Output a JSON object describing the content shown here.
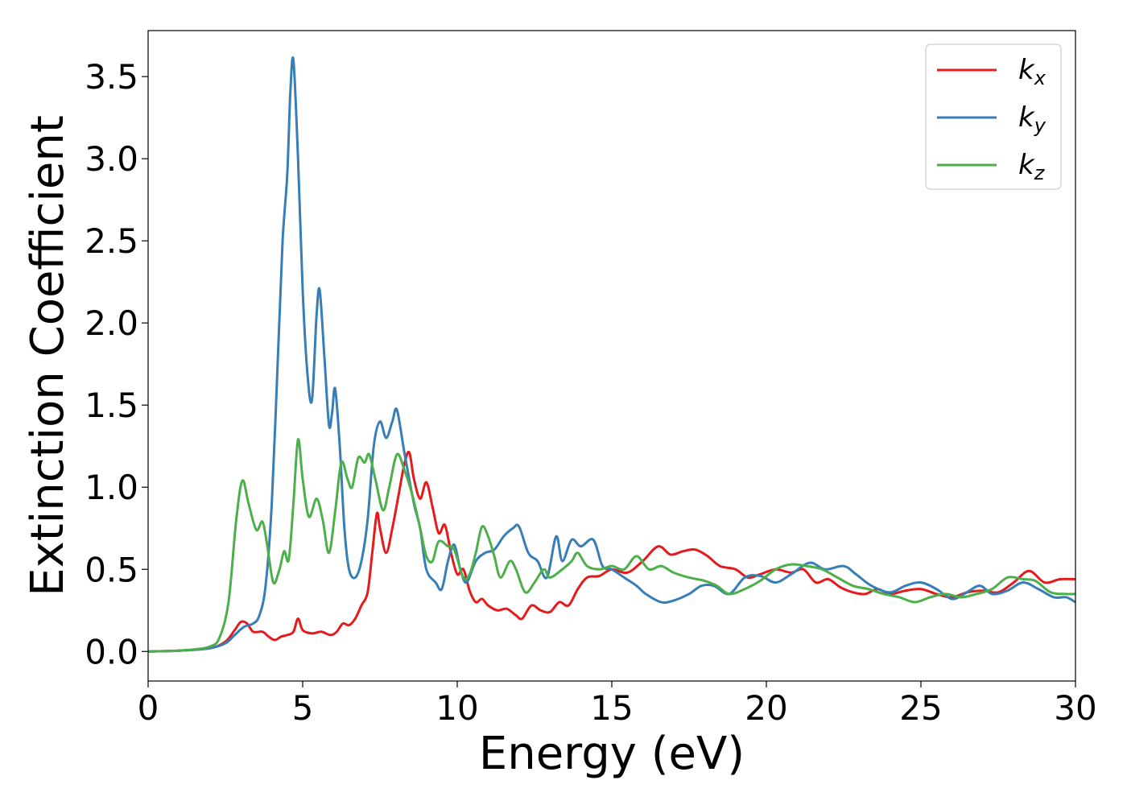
{
  "chart_data": {
    "type": "line",
    "xlabel": "Energy (eV)",
    "ylabel": "Extinction Coefficient",
    "xlim": [
      0,
      30
    ],
    "ylim": [
      -0.18,
      3.78
    ],
    "xticks": [
      0,
      5,
      10,
      15,
      20,
      25,
      30
    ],
    "xtick_labels": [
      "0",
      "5",
      "10",
      "15",
      "20",
      "25",
      "30"
    ],
    "yticks": [
      0.0,
      0.5,
      1.0,
      1.5,
      2.0,
      2.5,
      3.0,
      3.5
    ],
    "ytick_labels": [
      "0.0",
      "0.5",
      "1.0",
      "1.5",
      "2.0",
      "2.5",
      "3.0",
      "3.5"
    ],
    "grid": false,
    "legend_position": "top-right",
    "series": [
      {
        "name": "k_x",
        "legend_base": "k",
        "legend_sub": "x",
        "color": "#e41a1c",
        "points": [
          [
            0,
            0
          ],
          [
            1,
            0.005
          ],
          [
            2,
            0.02
          ],
          [
            2.5,
            0.06
          ],
          [
            2.8,
            0.13
          ],
          [
            3.0,
            0.18
          ],
          [
            3.2,
            0.17
          ],
          [
            3.4,
            0.12
          ],
          [
            3.7,
            0.12
          ],
          [
            3.9,
            0.09
          ],
          [
            4.1,
            0.07
          ],
          [
            4.3,
            0.09
          ],
          [
            4.5,
            0.1
          ],
          [
            4.7,
            0.12
          ],
          [
            4.85,
            0.2
          ],
          [
            5.0,
            0.13
          ],
          [
            5.3,
            0.11
          ],
          [
            5.6,
            0.12
          ],
          [
            5.9,
            0.1
          ],
          [
            6.1,
            0.12
          ],
          [
            6.3,
            0.17
          ],
          [
            6.5,
            0.16
          ],
          [
            6.7,
            0.2
          ],
          [
            6.9,
            0.28
          ],
          [
            7.1,
            0.36
          ],
          [
            7.25,
            0.6
          ],
          [
            7.4,
            0.84
          ],
          [
            7.5,
            0.75
          ],
          [
            7.7,
            0.6
          ],
          [
            7.9,
            0.75
          ],
          [
            8.1,
            0.95
          ],
          [
            8.3,
            1.15
          ],
          [
            8.45,
            1.21
          ],
          [
            8.6,
            1.05
          ],
          [
            8.8,
            0.93
          ],
          [
            9.0,
            1.03
          ],
          [
            9.2,
            0.88
          ],
          [
            9.4,
            0.72
          ],
          [
            9.6,
            0.77
          ],
          [
            9.8,
            0.6
          ],
          [
            10.0,
            0.47
          ],
          [
            10.2,
            0.5
          ],
          [
            10.4,
            0.37
          ],
          [
            10.6,
            0.3
          ],
          [
            10.8,
            0.32
          ],
          [
            11.0,
            0.28
          ],
          [
            11.3,
            0.25
          ],
          [
            11.6,
            0.26
          ],
          [
            11.9,
            0.22
          ],
          [
            12.1,
            0.2
          ],
          [
            12.4,
            0.28
          ],
          [
            12.7,
            0.25
          ],
          [
            13.0,
            0.24
          ],
          [
            13.3,
            0.3
          ],
          [
            13.6,
            0.28
          ],
          [
            13.9,
            0.38
          ],
          [
            14.2,
            0.45
          ],
          [
            14.6,
            0.46
          ],
          [
            15.0,
            0.5
          ],
          [
            15.5,
            0.48
          ],
          [
            16.0,
            0.55
          ],
          [
            16.5,
            0.64
          ],
          [
            16.9,
            0.59
          ],
          [
            17.3,
            0.61
          ],
          [
            17.7,
            0.62
          ],
          [
            18.1,
            0.58
          ],
          [
            18.5,
            0.52
          ],
          [
            19.0,
            0.5
          ],
          [
            19.4,
            0.45
          ],
          [
            19.8,
            0.47
          ],
          [
            20.3,
            0.5
          ],
          [
            20.8,
            0.48
          ],
          [
            21.2,
            0.5
          ],
          [
            21.6,
            0.42
          ],
          [
            22.0,
            0.44
          ],
          [
            22.4,
            0.39
          ],
          [
            22.8,
            0.36
          ],
          [
            23.2,
            0.35
          ],
          [
            23.6,
            0.38
          ],
          [
            24.0,
            0.35
          ],
          [
            24.5,
            0.37
          ],
          [
            25.0,
            0.38
          ],
          [
            25.5,
            0.35
          ],
          [
            26.0,
            0.33
          ],
          [
            26.5,
            0.36
          ],
          [
            27.0,
            0.37
          ],
          [
            27.5,
            0.36
          ],
          [
            28.0,
            0.42
          ],
          [
            28.5,
            0.49
          ],
          [
            29.0,
            0.42
          ],
          [
            29.5,
            0.44
          ],
          [
            30.0,
            0.44
          ]
        ]
      },
      {
        "name": "k_y",
        "legend_base": "k",
        "legend_sub": "y",
        "color": "#377eb8",
        "points": [
          [
            0,
            0
          ],
          [
            1,
            0.005
          ],
          [
            2,
            0.02
          ],
          [
            2.5,
            0.05
          ],
          [
            2.8,
            0.1
          ],
          [
            3.1,
            0.15
          ],
          [
            3.4,
            0.17
          ],
          [
            3.6,
            0.22
          ],
          [
            3.8,
            0.4
          ],
          [
            4.0,
            0.9
          ],
          [
            4.2,
            1.8
          ],
          [
            4.35,
            2.5
          ],
          [
            4.5,
            2.9
          ],
          [
            4.6,
            3.4
          ],
          [
            4.7,
            3.6
          ],
          [
            4.85,
            3.0
          ],
          [
            5.0,
            2.2
          ],
          [
            5.15,
            1.7
          ],
          [
            5.3,
            1.53
          ],
          [
            5.45,
            2.05
          ],
          [
            5.55,
            2.2
          ],
          [
            5.7,
            1.8
          ],
          [
            5.85,
            1.38
          ],
          [
            5.95,
            1.45
          ],
          [
            6.05,
            1.6
          ],
          [
            6.2,
            1.25
          ],
          [
            6.35,
            0.75
          ],
          [
            6.5,
            0.5
          ],
          [
            6.7,
            0.45
          ],
          [
            6.9,
            0.55
          ],
          [
            7.1,
            0.8
          ],
          [
            7.3,
            1.25
          ],
          [
            7.5,
            1.4
          ],
          [
            7.7,
            1.3
          ],
          [
            7.9,
            1.4
          ],
          [
            8.05,
            1.47
          ],
          [
            8.3,
            1.2
          ],
          [
            8.6,
            0.9
          ],
          [
            8.8,
            0.75
          ],
          [
            9.0,
            0.5
          ],
          [
            9.3,
            0.42
          ],
          [
            9.5,
            0.38
          ],
          [
            9.7,
            0.55
          ],
          [
            9.9,
            0.65
          ],
          [
            10.1,
            0.5
          ],
          [
            10.3,
            0.42
          ],
          [
            10.6,
            0.55
          ],
          [
            10.9,
            0.6
          ],
          [
            11.2,
            0.62
          ],
          [
            11.5,
            0.7
          ],
          [
            11.8,
            0.75
          ],
          [
            12.0,
            0.76
          ],
          [
            12.3,
            0.6
          ],
          [
            12.6,
            0.55
          ],
          [
            12.9,
            0.45
          ],
          [
            13.2,
            0.7
          ],
          [
            13.4,
            0.55
          ],
          [
            13.7,
            0.68
          ],
          [
            14.0,
            0.64
          ],
          [
            14.4,
            0.68
          ],
          [
            14.7,
            0.52
          ],
          [
            15.0,
            0.5
          ],
          [
            15.4,
            0.45
          ],
          [
            15.8,
            0.4
          ],
          [
            16.1,
            0.35
          ],
          [
            16.6,
            0.3
          ],
          [
            17.0,
            0.31
          ],
          [
            17.5,
            0.35
          ],
          [
            17.9,
            0.4
          ],
          [
            18.3,
            0.4
          ],
          [
            18.8,
            0.35
          ],
          [
            19.3,
            0.45
          ],
          [
            19.8,
            0.46
          ],
          [
            20.3,
            0.42
          ],
          [
            20.8,
            0.47
          ],
          [
            21.4,
            0.54
          ],
          [
            21.9,
            0.5
          ],
          [
            22.5,
            0.52
          ],
          [
            22.9,
            0.47
          ],
          [
            23.4,
            0.4
          ],
          [
            24.0,
            0.36
          ],
          [
            24.5,
            0.4
          ],
          [
            25.0,
            0.42
          ],
          [
            25.5,
            0.38
          ],
          [
            26.0,
            0.32
          ],
          [
            26.4,
            0.35
          ],
          [
            26.9,
            0.4
          ],
          [
            27.3,
            0.35
          ],
          [
            27.8,
            0.37
          ],
          [
            28.3,
            0.42
          ],
          [
            28.8,
            0.38
          ],
          [
            29.3,
            0.33
          ],
          [
            29.7,
            0.33
          ],
          [
            30.0,
            0.3
          ]
        ]
      },
      {
        "name": "k_z",
        "legend_base": "k",
        "legend_sub": "z",
        "color": "#4daf4a",
        "points": [
          [
            0,
            0
          ],
          [
            1,
            0.005
          ],
          [
            1.6,
            0.015
          ],
          [
            2.0,
            0.03
          ],
          [
            2.3,
            0.08
          ],
          [
            2.6,
            0.3
          ],
          [
            2.85,
            0.8
          ],
          [
            3.05,
            1.04
          ],
          [
            3.25,
            0.9
          ],
          [
            3.5,
            0.74
          ],
          [
            3.7,
            0.79
          ],
          [
            3.85,
            0.65
          ],
          [
            4.05,
            0.42
          ],
          [
            4.25,
            0.5
          ],
          [
            4.4,
            0.61
          ],
          [
            4.55,
            0.56
          ],
          [
            4.7,
            0.9
          ],
          [
            4.85,
            1.29
          ],
          [
            5.0,
            1.05
          ],
          [
            5.2,
            0.82
          ],
          [
            5.45,
            0.93
          ],
          [
            5.65,
            0.8
          ],
          [
            5.85,
            0.6
          ],
          [
            6.05,
            0.85
          ],
          [
            6.25,
            1.15
          ],
          [
            6.45,
            1.05
          ],
          [
            6.6,
            1.0
          ],
          [
            6.8,
            1.18
          ],
          [
            7.0,
            1.15
          ],
          [
            7.15,
            1.2
          ],
          [
            7.35,
            1.05
          ],
          [
            7.6,
            0.86
          ],
          [
            7.8,
            1.0
          ],
          [
            8.05,
            1.2
          ],
          [
            8.3,
            1.1
          ],
          [
            8.55,
            0.95
          ],
          [
            8.8,
            0.75
          ],
          [
            9.0,
            0.58
          ],
          [
            9.2,
            0.55
          ],
          [
            9.4,
            0.67
          ],
          [
            9.7,
            0.64
          ],
          [
            9.9,
            0.62
          ],
          [
            10.2,
            0.45
          ],
          [
            10.4,
            0.47
          ],
          [
            10.6,
            0.6
          ],
          [
            10.8,
            0.76
          ],
          [
            11.0,
            0.7
          ],
          [
            11.2,
            0.58
          ],
          [
            11.4,
            0.45
          ],
          [
            11.7,
            0.55
          ],
          [
            11.9,
            0.5
          ],
          [
            12.2,
            0.36
          ],
          [
            12.5,
            0.42
          ],
          [
            12.8,
            0.5
          ],
          [
            13.0,
            0.45
          ],
          [
            13.4,
            0.5
          ],
          [
            13.7,
            0.55
          ],
          [
            13.9,
            0.6
          ],
          [
            14.2,
            0.52
          ],
          [
            14.6,
            0.5
          ],
          [
            15.0,
            0.52
          ],
          [
            15.4,
            0.5
          ],
          [
            15.8,
            0.58
          ],
          [
            16.2,
            0.5
          ],
          [
            16.6,
            0.52
          ],
          [
            17.0,
            0.48
          ],
          [
            17.5,
            0.45
          ],
          [
            18.0,
            0.43
          ],
          [
            18.4,
            0.4
          ],
          [
            18.8,
            0.35
          ],
          [
            19.3,
            0.38
          ],
          [
            19.8,
            0.43
          ],
          [
            20.3,
            0.5
          ],
          [
            20.8,
            0.53
          ],
          [
            21.3,
            0.52
          ],
          [
            21.8,
            0.5
          ],
          [
            22.3,
            0.45
          ],
          [
            22.8,
            0.4
          ],
          [
            23.3,
            0.38
          ],
          [
            23.8,
            0.35
          ],
          [
            24.3,
            0.33
          ],
          [
            24.8,
            0.3
          ],
          [
            25.3,
            0.33
          ],
          [
            25.8,
            0.35
          ],
          [
            26.3,
            0.33
          ],
          [
            26.8,
            0.35
          ],
          [
            27.3,
            0.38
          ],
          [
            27.8,
            0.45
          ],
          [
            28.3,
            0.44
          ],
          [
            28.7,
            0.43
          ],
          [
            29.2,
            0.36
          ],
          [
            29.7,
            0.35
          ],
          [
            30.0,
            0.35
          ]
        ]
      }
    ]
  }
}
